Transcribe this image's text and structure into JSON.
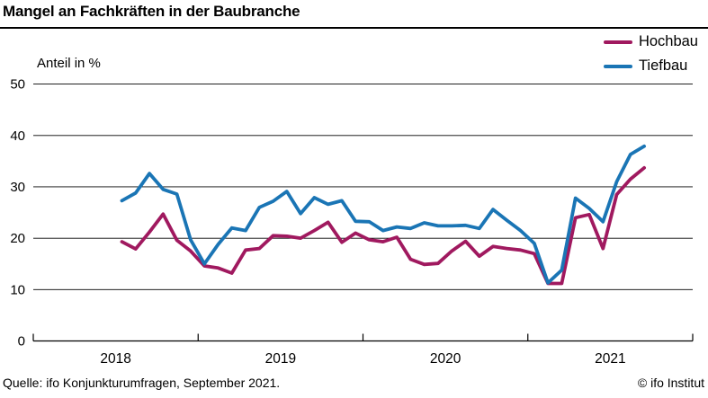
{
  "header": {
    "title": "Mangel an Fachkräften in der Baubranche"
  },
  "chart_data": {
    "type": "line",
    "title": "Mangel an Fachkräften in der Baubranche",
    "ylabel": "Anteil in %",
    "xlabel": "",
    "ylim": [
      0,
      50
    ],
    "yticks": [
      0,
      10,
      20,
      30,
      40,
      50
    ],
    "grid": "horizontal",
    "legend_position": "top-right",
    "year_labels": [
      "2018",
      "2019",
      "2020",
      "2021"
    ],
    "x_frequency": "monthly",
    "x": [
      "2018-07",
      "2018-08",
      "2018-09",
      "2018-10",
      "2018-11",
      "2018-12",
      "2019-01",
      "2019-02",
      "2019-03",
      "2019-04",
      "2019-05",
      "2019-06",
      "2019-07",
      "2019-08",
      "2019-09",
      "2019-10",
      "2019-11",
      "2019-12",
      "2020-01",
      "2020-02",
      "2020-03",
      "2020-04",
      "2020-05",
      "2020-06",
      "2020-07",
      "2020-08",
      "2020-09",
      "2020-10",
      "2020-11",
      "2020-12",
      "2021-01",
      "2021-02",
      "2021-03",
      "2021-04",
      "2021-05",
      "2021-06",
      "2021-07",
      "2021-08",
      "2021-09"
    ],
    "series": [
      {
        "name": "Hochbau",
        "color": "#a0195f",
        "values": [
          19.3,
          17.9,
          21.2,
          24.7,
          19.6,
          17.5,
          14.6,
          14.2,
          13.2,
          17.7,
          18.0,
          20.5,
          20.4,
          20.0,
          21.5,
          23.1,
          19.2,
          21.0,
          19.7,
          19.3,
          20.2,
          15.9,
          14.9,
          15.1,
          17.5,
          19.4,
          16.5,
          18.4,
          18.0,
          17.7,
          17.0,
          11.2,
          11.2,
          24.0,
          24.6,
          18.0,
          28.5,
          31.5,
          33.7
        ]
      },
      {
        "name": "Tiefbau",
        "color": "#1a75b5",
        "values": [
          27.3,
          28.8,
          32.6,
          29.5,
          28.6,
          19.7,
          15.0,
          18.8,
          22.0,
          21.5,
          26.0,
          27.2,
          29.1,
          24.8,
          27.9,
          26.6,
          27.3,
          23.3,
          23.2,
          21.5,
          22.2,
          21.9,
          23.0,
          22.4,
          22.4,
          22.5,
          21.9,
          25.6,
          23.5,
          21.5,
          19.0,
          11.3,
          13.8,
          27.8,
          25.8,
          23.2,
          31.0,
          36.3,
          37.9
        ]
      }
    ]
  },
  "footer": {
    "source": "Quelle: ifo Konjunkturumfragen, September 2021.",
    "credit": "© ifo Institut"
  }
}
